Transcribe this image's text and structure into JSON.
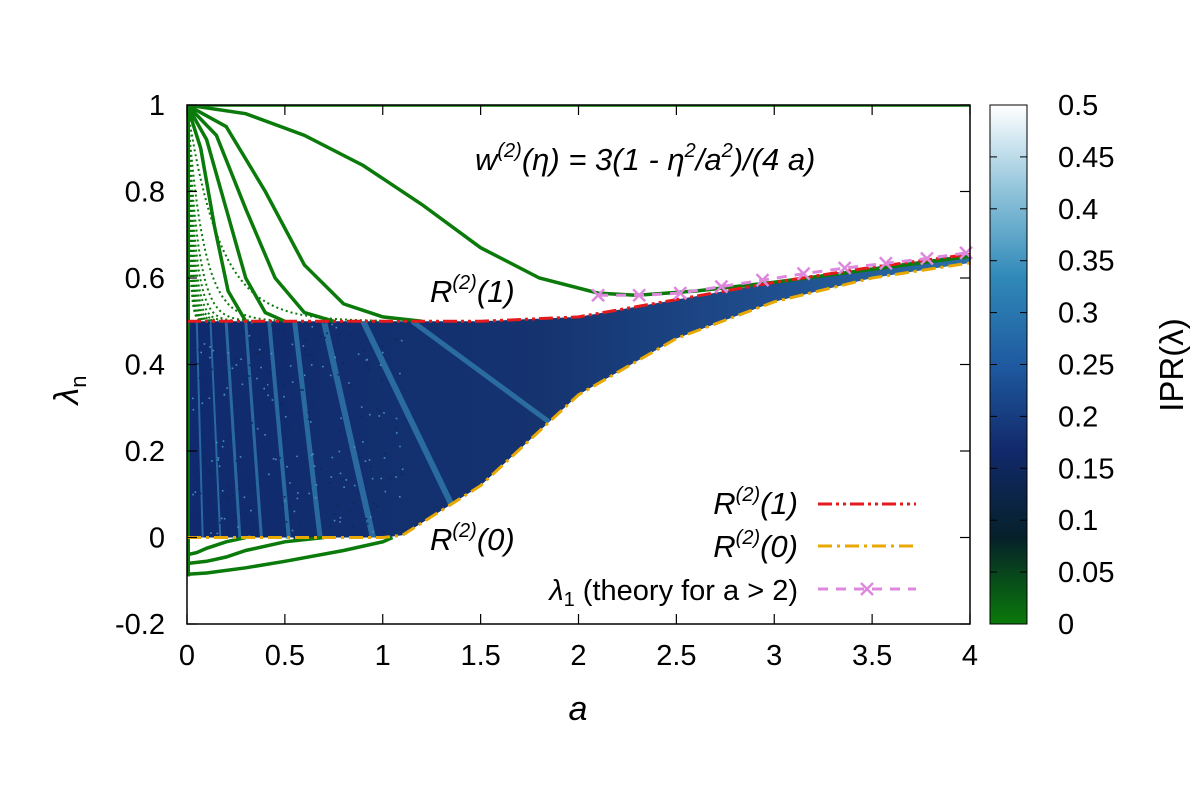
{
  "chart_data": {
    "type": "heatmap",
    "xlabel": "a",
    "ylabel": "λn",
    "xlim": [
      0,
      4
    ],
    "ylim": [
      -0.2,
      1
    ],
    "xticks": [
      "0",
      "0.5",
      "1",
      "1.5",
      "2",
      "2.5",
      "3",
      "3.5",
      "4"
    ],
    "yticks": [
      "-0.2",
      "0",
      "0.2",
      "0.4",
      "0.6",
      "0.8",
      "1"
    ],
    "formula": "w(2)(η) = 3(1 - η2/a2)/(4 a)",
    "colorbar": {
      "label": "IPR(λ)",
      "range": [
        0,
        0.5
      ],
      "ticks": [
        "0",
        "0.05",
        "0.1",
        "0.15",
        "0.2",
        "0.25",
        "0.3",
        "0.35",
        "0.4",
        "0.45",
        "0.5"
      ],
      "colors": [
        "#0a7a0a",
        "#06202a",
        "#11296a",
        "#1f5aa0",
        "#2f89b8",
        "#8fc3da",
        "#ffffff"
      ]
    },
    "annotations": [
      "R(2)(1)",
      "R(2)(0)"
    ],
    "series": [
      {
        "name": "R(2)(1)",
        "style": "dash-dot-dot",
        "color": "#e41a1c",
        "x": [
          0,
          0.5,
          1,
          1.5,
          2,
          2.5,
          3,
          3.5,
          4
        ],
        "y": [
          0.5,
          0.5,
          0.5,
          0.5,
          0.51,
          0.55,
          0.59,
          0.625,
          0.655
        ]
      },
      {
        "name": "R(2)(0)",
        "style": "dash-dot",
        "color": "#e8a800",
        "x": [
          0,
          0.5,
          1,
          1.1,
          1.5,
          2,
          2.5,
          3,
          3.5,
          4
        ],
        "y": [
          0,
          0,
          0,
          0.005,
          0.12,
          0.33,
          0.46,
          0.545,
          0.6,
          0.635
        ]
      },
      {
        "name": "λ1 (theory for a > 2)",
        "style": "dashed-cross",
        "color": "#dd88dd",
        "x": [
          2.1,
          2.31,
          2.52,
          2.73,
          2.94,
          3.15,
          3.36,
          3.57,
          3.78,
          3.98
        ],
        "y": [
          0.56,
          0.56,
          0.565,
          0.58,
          0.595,
          0.61,
          0.623,
          0.634,
          0.645,
          0.658
        ]
      }
    ],
    "eigen_curves": [
      {
        "x": [
          0,
          0.3,
          0.6,
          0.9,
          1.2,
          1.5,
          1.8,
          2.1,
          2.3,
          2.6,
          3,
          3.5,
          4
        ],
        "y": [
          1,
          0.98,
          0.93,
          0.86,
          0.77,
          0.67,
          0.6,
          0.565,
          0.56,
          0.57,
          0.59,
          0.62,
          0.65
        ]
      },
      {
        "x": [
          0,
          0.2,
          0.4,
          0.6,
          0.8,
          1.0,
          1.2
        ],
        "y": [
          1,
          0.95,
          0.8,
          0.63,
          0.54,
          0.51,
          0.5
        ]
      },
      {
        "x": [
          0,
          0.15,
          0.3,
          0.45,
          0.6,
          0.75
        ],
        "y": [
          1,
          0.93,
          0.76,
          0.6,
          0.52,
          0.5
        ]
      },
      {
        "x": [
          0,
          0.1,
          0.2,
          0.3,
          0.4,
          0.5
        ],
        "y": [
          1,
          0.92,
          0.76,
          0.6,
          0.52,
          0.5
        ]
      },
      {
        "x": [
          0,
          0.07,
          0.14,
          0.21,
          0.3
        ],
        "y": [
          1,
          0.9,
          0.72,
          0.57,
          0.5
        ]
      },
      {
        "x": [
          0,
          0.1,
          0.3,
          0.5,
          0.8,
          1.0,
          1.05
        ],
        "y": [
          -0.085,
          -0.082,
          -0.07,
          -0.055,
          -0.03,
          -0.01,
          0
        ]
      },
      {
        "x": [
          0,
          0.1,
          0.2,
          0.3,
          0.5,
          0.7
        ],
        "y": [
          -0.06,
          -0.055,
          -0.045,
          -0.03,
          -0.01,
          0
        ]
      },
      {
        "x": [
          0,
          0.05,
          0.1,
          0.2,
          0.3
        ],
        "y": [
          -0.04,
          -0.035,
          -0.025,
          -0.01,
          0
        ]
      },
      {
        "x": [
          0,
          4
        ],
        "y": [
          1,
          1
        ]
      }
    ]
  }
}
